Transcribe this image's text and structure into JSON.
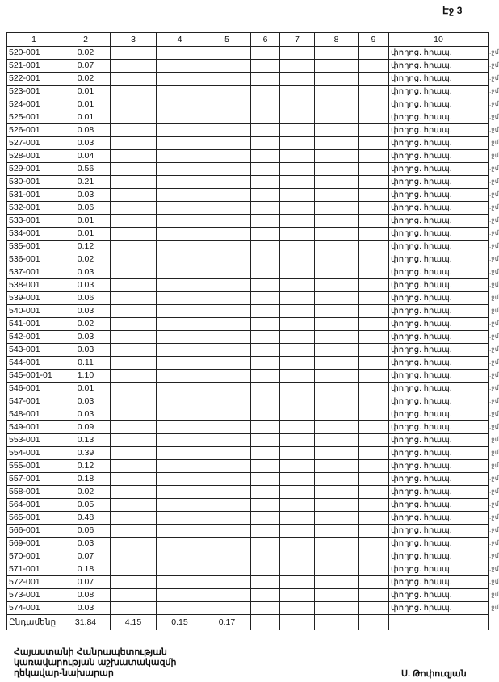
{
  "page_label": "Էջ 3",
  "table": {
    "headers": [
      "1",
      "2",
      "3",
      "4",
      "5",
      "6",
      "7",
      "8",
      "9",
      "10"
    ],
    "rows": [
      [
        "520-001",
        "0.02"
      ],
      [
        "521-001",
        "0.07"
      ],
      [
        "522-001",
        "0.02"
      ],
      [
        "523-001",
        "0.01"
      ],
      [
        "524-001",
        "0.01"
      ],
      [
        "525-001",
        "0.01"
      ],
      [
        "526-001",
        "0.08"
      ],
      [
        "527-001",
        "0.03"
      ],
      [
        "528-001",
        "0.04"
      ],
      [
        "529-001",
        "0.56"
      ],
      [
        "530-001",
        "0.21"
      ],
      [
        "531-001",
        "0.03"
      ],
      [
        "532-001",
        "0.06"
      ],
      [
        "533-001",
        "0.01"
      ],
      [
        "534-001",
        "0.01"
      ],
      [
        "535-001",
        "0.12"
      ],
      [
        "536-001",
        "0.02"
      ],
      [
        "537-001",
        "0.03"
      ],
      [
        "538-001",
        "0.03"
      ],
      [
        "539-001",
        "0.06"
      ],
      [
        "540-001",
        "0.03"
      ],
      [
        "541-001",
        "0.02"
      ],
      [
        "542-001",
        "0.03"
      ],
      [
        "543-001",
        "0.03"
      ],
      [
        "544-001",
        "0.11"
      ],
      [
        "545-001-01",
        "1.10"
      ],
      [
        "546-001",
        "0.01"
      ],
      [
        "547-001",
        "0.03"
      ],
      [
        "548-001",
        "0.03"
      ],
      [
        "549-001",
        "0.09"
      ],
      [
        "553-001",
        "0.13"
      ],
      [
        "554-001",
        "0.39"
      ],
      [
        "555-001",
        "0.12"
      ],
      [
        "557-001",
        "0.18"
      ],
      [
        "558-001",
        "0.02"
      ],
      [
        "564-001",
        "0.05"
      ],
      [
        "565-001",
        "0.48"
      ],
      [
        "566-001",
        "0.06"
      ],
      [
        "569-001",
        "0.03"
      ],
      [
        "570-001",
        "0.07"
      ],
      [
        "571-001",
        "0.18"
      ],
      [
        "572-001",
        "0.07"
      ],
      [
        "573-001",
        "0.08"
      ],
      [
        "574-001",
        "0.03"
      ]
    ],
    "col10_value": "փողոց. հրապ.",
    "total": {
      "label": "Ընդամենը",
      "values": [
        "31.84",
        "4.15",
        "0.15",
        "0.17",
        "",
        "",
        "",
        "",
        ""
      ]
    }
  },
  "footer": {
    "position_lines": [
      "Հայաստանի Հանրապետության",
      "կառավարության աշխատակազմի",
      "ղեկավար-նախարար"
    ],
    "signature_name": "Ս. Թոփուզյան"
  }
}
